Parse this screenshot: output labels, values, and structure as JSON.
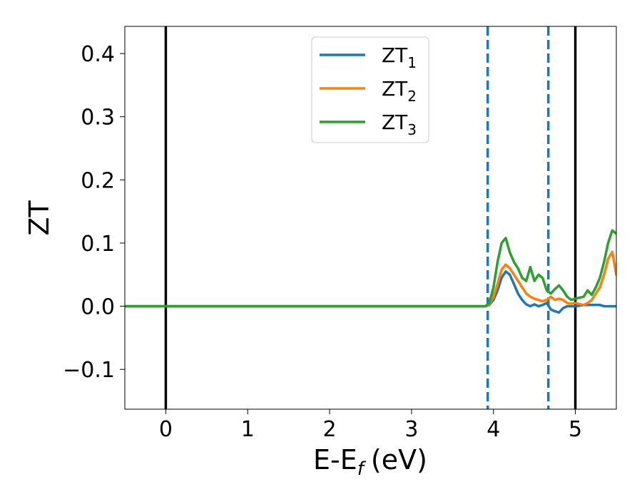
{
  "chart_data": {
    "type": "line",
    "xlabel": "E-E",
    "xlabel_sub": "f",
    "xlabel_unit": "(eV)",
    "ylabel": "ZT",
    "xlim": [
      -0.5,
      5.5
    ],
    "ylim": [
      -0.163,
      0.443
    ],
    "xticks": [
      0,
      1,
      2,
      3,
      4,
      5
    ],
    "xtick_labels": [
      "0",
      "1",
      "2",
      "3",
      "4",
      "5"
    ],
    "yticks": [
      -0.1,
      0.0,
      0.1,
      0.2,
      0.3,
      0.4
    ],
    "ytick_labels": [
      "−0.1",
      "0.0",
      "0.1",
      "0.2",
      "0.3",
      "0.4"
    ],
    "grid": false,
    "legend_position": "top-center",
    "vlines_solid": [
      0,
      5
    ],
    "vlines_dashed": [
      3.93,
      4.67
    ],
    "vline_solid_color": "#000000",
    "vline_dashed_color": "#1f77b4",
    "series": [
      {
        "name": "ZT",
        "name_sub": "1",
        "color": "#1f77b4",
        "x": [
          -0.5,
          3.8,
          3.9,
          3.95,
          4.0,
          4.05,
          4.1,
          4.15,
          4.2,
          4.25,
          4.3,
          4.35,
          4.4,
          4.45,
          4.5,
          4.55,
          4.6,
          4.65,
          4.7,
          4.75,
          4.8,
          4.85,
          4.9,
          4.95,
          5.0,
          5.1,
          5.2,
          5.3,
          5.35,
          5.4,
          5.45,
          5.5
        ],
        "y": [
          0.0,
          0.0,
          0.0,
          0.002,
          0.01,
          0.025,
          0.045,
          0.055,
          0.05,
          0.035,
          0.02,
          0.01,
          0.003,
          0.0,
          0.003,
          0.0,
          0.002,
          0.005,
          -0.005,
          -0.008,
          -0.01,
          -0.003,
          0.0,
          0.0,
          0.0,
          0.002,
          0.002,
          0.002,
          0.0,
          0.0,
          0.0,
          0.0
        ]
      },
      {
        "name": "ZT",
        "name_sub": "2",
        "color": "#ff7f0e",
        "x": [
          -0.5,
          3.8,
          3.9,
          3.95,
          4.0,
          4.05,
          4.1,
          4.15,
          4.2,
          4.25,
          4.3,
          4.35,
          4.4,
          4.45,
          4.5,
          4.55,
          4.6,
          4.65,
          4.7,
          4.75,
          4.8,
          4.85,
          4.9,
          4.95,
          5.0,
          5.1,
          5.15,
          5.2,
          5.25,
          5.3,
          5.35,
          5.4,
          5.45,
          5.5
        ],
        "y": [
          0.0,
          0.0,
          0.0,
          0.003,
          0.015,
          0.035,
          0.058,
          0.066,
          0.06,
          0.05,
          0.04,
          0.03,
          0.02,
          0.015,
          0.012,
          0.01,
          0.008,
          0.01,
          0.015,
          0.01,
          0.012,
          0.01,
          0.005,
          0.004,
          0.005,
          0.002,
          0.005,
          0.01,
          0.02,
          0.03,
          0.05,
          0.075,
          0.086,
          0.05
        ]
      },
      {
        "name": "ZT",
        "name_sub": "3",
        "color": "#2ca02c",
        "x": [
          -0.5,
          3.8,
          3.9,
          3.95,
          4.0,
          4.05,
          4.1,
          4.15,
          4.2,
          4.25,
          4.3,
          4.35,
          4.4,
          4.45,
          4.5,
          4.55,
          4.6,
          4.65,
          4.7,
          4.75,
          4.8,
          4.85,
          4.9,
          4.95,
          5.0,
          5.1,
          5.15,
          5.2,
          5.25,
          5.3,
          5.35,
          5.4,
          5.45,
          5.5
        ],
        "y": [
          0.0,
          0.0,
          0.0,
          0.005,
          0.03,
          0.07,
          0.1,
          0.108,
          0.085,
          0.07,
          0.06,
          0.045,
          0.04,
          0.062,
          0.04,
          0.05,
          0.045,
          0.025,
          0.02,
          0.027,
          0.033,
          0.025,
          0.015,
          0.01,
          0.012,
          0.015,
          0.025,
          0.018,
          0.03,
          0.045,
          0.07,
          0.1,
          0.12,
          0.115
        ]
      }
    ]
  }
}
